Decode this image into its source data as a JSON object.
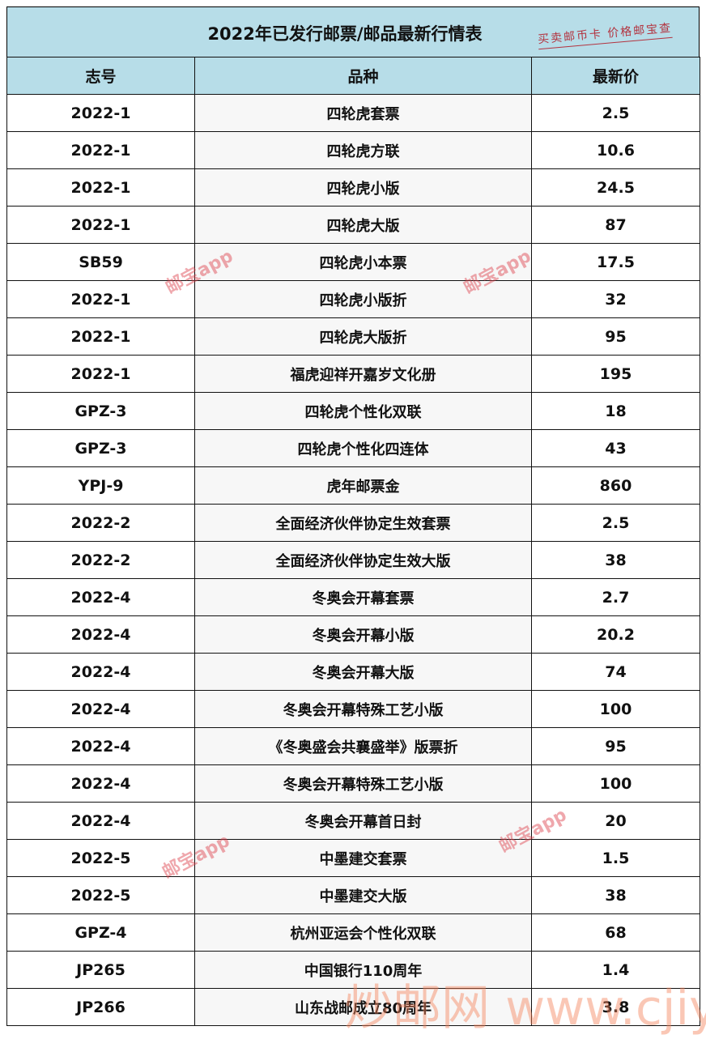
{
  "title": "2022年已发行邮票/邮品最新行情表",
  "slogan": "买卖邮币卡 价格邮宝查",
  "headers": [
    "志号",
    "品种",
    "最新价"
  ],
  "rows": [
    [
      "2022-1",
      "四轮虎套票",
      "2.5"
    ],
    [
      "2022-1",
      "四轮虎方联",
      "10.6"
    ],
    [
      "2022-1",
      "四轮虎小版",
      "24.5"
    ],
    [
      "2022-1",
      "四轮虎大版",
      "87"
    ],
    [
      "SB59",
      "四轮虎小本票",
      "17.5"
    ],
    [
      "2022-1",
      "四轮虎小版折",
      "32"
    ],
    [
      "2022-1",
      "四轮虎大版折",
      "95"
    ],
    [
      "2022-1",
      "福虎迎祥开嘉岁文化册",
      "195"
    ],
    [
      "GPZ-3",
      "四轮虎个性化双联",
      "18"
    ],
    [
      "GPZ-3",
      "四轮虎个性化四连体",
      "43"
    ],
    [
      "YPJ-9",
      "虎年邮票金",
      "860"
    ],
    [
      "2022-2",
      "全面经济伙伴协定生效套票",
      "2.5"
    ],
    [
      "2022-2",
      "全面经济伙伴协定生效大版",
      "38"
    ],
    [
      "2022-4",
      "冬奥会开幕套票",
      "2.7"
    ],
    [
      "2022-4",
      "冬奥会开幕小版",
      "20.2"
    ],
    [
      "2022-4",
      "冬奥会开幕大版",
      "74"
    ],
    [
      "2022-4",
      "冬奥会开幕特殊工艺小版",
      "100"
    ],
    [
      "2022-4",
      "《冬奥盛会共襄盛举》版票折",
      "95"
    ],
    [
      "2022-4",
      "冬奥会开幕特殊工艺小版",
      "100"
    ],
    [
      "2022-4",
      "冬奥会开幕首日封",
      "20"
    ],
    [
      "2022-5",
      "中墨建交套票",
      "1.5"
    ],
    [
      "2022-5",
      "中墨建交大版",
      "38"
    ],
    [
      "GPZ-4",
      "杭州亚运会个性化双联",
      "68"
    ],
    [
      "JP265",
      "中国银行110周年",
      "1.4"
    ],
    [
      "JP266",
      "山东战邮成立80周年",
      "3.8"
    ]
  ],
  "watermark": "邮宝app",
  "site_watermark": "炒邮网 www.cjiyou.net"
}
